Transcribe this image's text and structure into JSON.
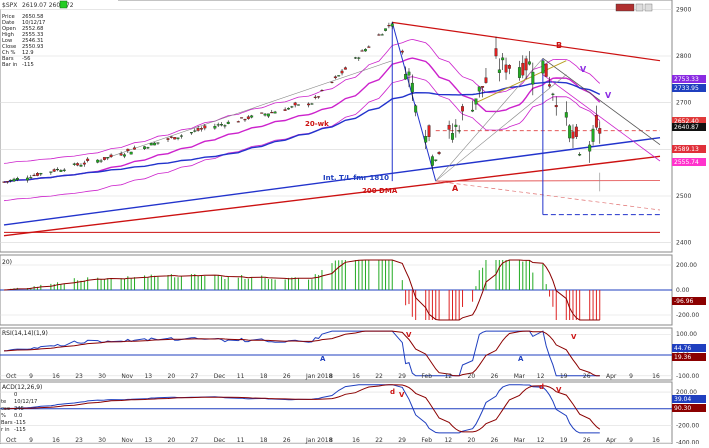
{
  "window": {
    "title_label": "$SPX",
    "title_value": "2619.07 2609.72"
  },
  "info_panel": {
    "rows": [
      {
        "label": "Price",
        "value": "2650.58"
      },
      {
        "label": "Date",
        "value": "10/12/17"
      },
      {
        "label": "Open",
        "value": "2552.68"
      },
      {
        "label": "High",
        "value": "2555.33"
      },
      {
        "label": "Low",
        "value": "2546.31"
      },
      {
        "label": "Close",
        "value": "2550.93"
      },
      {
        "label": "Ch %",
        "value": "12.9"
      },
      {
        "label": "Bars",
        "value": "-56"
      },
      {
        "label": "Bar in",
        "value": "-115"
      }
    ]
  },
  "annotations": {
    "ma_20wk": "20-wk",
    "ma_200": "200 DMA",
    "trendline": "Int. T/L fmr 1810",
    "wave_a_low": "A",
    "wave_b_high": "B",
    "wave_v_1": "V",
    "wave_v_2": "V",
    "sub_a_1": "A",
    "sub_a_2": "A",
    "sub_v_1": "V",
    "sub_v_2": "V",
    "sub_d_1": "d",
    "sub_v_3": "V",
    "sub_d_2": "d",
    "sub_v_4": "V"
  },
  "price_badges": [
    {
      "value": "2753.33",
      "color": "#8a2be2"
    },
    {
      "value": "2733.95",
      "color": "#1f3fbf"
    },
    {
      "value": "2652.40",
      "color": "#e03a3a"
    },
    {
      "value": "2640.87",
      "color": "#111111"
    },
    {
      "value": "2589.13",
      "color": "#e0303a"
    },
    {
      "value": "2555.74",
      "color": "#ff33cc"
    }
  ],
  "indicator_labels": {
    "panel2": "20)",
    "panel3": "RSI(14,14)(1,9)",
    "panel4": "ACD(12,26,9)"
  },
  "panel4_info": [
    {
      "label": "",
      "value": "0"
    },
    {
      "label": "te",
      "value": "10/12/17"
    },
    {
      "label": "ose",
      "value": "245"
    },
    {
      "label": "% ",
      "value": "0.0"
    },
    {
      "label": "Bars",
      "value": "-115"
    },
    {
      "label": "r in",
      "value": "-115"
    }
  ],
  "panel2_badges": [
    {
      "value": "-96.96",
      "color": "#8b0000"
    }
  ],
  "panel3_badges": [
    {
      "value": "44.76",
      "color": "#1f3fbf"
    },
    {
      "value": "19.36",
      "color": "#8b0000"
    }
  ],
  "panel4_badges": [
    {
      "value": "39.04",
      "color": "#1f3fbf"
    },
    {
      "value": "90.30",
      "color": "#8b0000"
    }
  ],
  "date_axis": {
    "ticks": [
      "Oct",
      "9",
      "16",
      "23",
      "30",
      "Nov",
      "13",
      "20",
      "27",
      "Dec",
      "11",
      "18",
      "26",
      "Jan 2018",
      "8",
      "16",
      "22",
      "29",
      "Feb",
      "12",
      "20",
      "26",
      "Mar",
      "12",
      "19",
      "26",
      "Apr",
      "9",
      "16"
    ]
  },
  "colors": {
    "bull_candle": "#22aa22",
    "bear_candle": "#dd2222",
    "ma_20wk": "#cc22cc",
    "ma_200": "#cc1111",
    "ma_blue": "#2233cc",
    "osc_up": "#22aa22",
    "osc_down": "#dd2222",
    "rsi_line": "#1f3fbf",
    "signal_line": "#8b0000"
  },
  "chart_data": [
    {
      "type": "candlestick",
      "title": "$SPX",
      "ylim": [
        2380,
        2920
      ],
      "y_ticks": [
        2400,
        2500,
        2600,
        2700,
        2800,
        2900
      ],
      "x_date_range": [
        "2017-10-02",
        "2018-04-16"
      ],
      "bars_keypoints": [
        {
          "date": "2017-10-02",
          "close": 2530
        },
        {
          "date": "2017-11-01",
          "close": 2580
        },
        {
          "date": "2017-12-01",
          "close": 2645
        },
        {
          "date": "2018-01-02",
          "close": 2700
        },
        {
          "date": "2018-01-26",
          "close": 2872
        },
        {
          "date": "2018-02-08",
          "close": 2581
        },
        {
          "date": "2018-02-26",
          "close": 2779
        },
        {
          "date": "2018-03-12",
          "close": 2783
        },
        {
          "date": "2018-03-23",
          "close": 2588
        },
        {
          "date": "2018-03-29",
          "close": 2641
        }
      ],
      "series": [
        {
          "name": "20-wk",
          "values_desc": "moving average"
        },
        {
          "name": "200 DMA",
          "values_desc": "moving average"
        }
      ]
    },
    {
      "type": "bar",
      "title": "20)",
      "ylim": [
        -280,
        280
      ],
      "y_ticks": [
        -200,
        0,
        200
      ],
      "last_value": -96.96
    },
    {
      "type": "line",
      "title": "RSI(14,14)(1,9)",
      "ylim": [
        -120,
        130
      ],
      "y_ticks": [
        -100,
        0,
        100
      ],
      "last_values": [
        44.76,
        19.36
      ]
    },
    {
      "type": "line",
      "title": "ACD(12,26,9)",
      "ylim": [
        -420,
        320
      ],
      "y_ticks": [
        -400,
        -200,
        0,
        200
      ],
      "last_values": [
        39.04,
        90.3
      ]
    }
  ]
}
